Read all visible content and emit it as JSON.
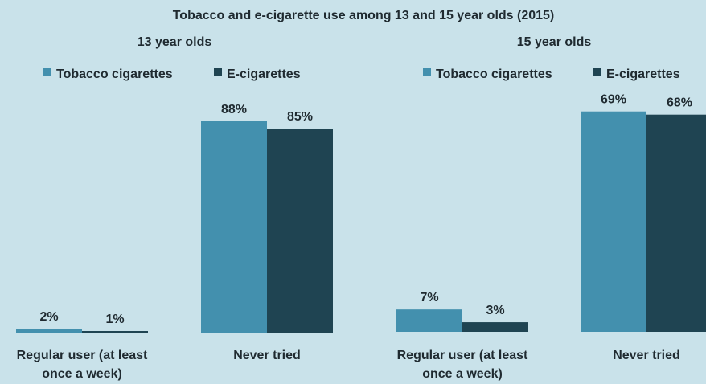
{
  "chart_data": [
    {
      "type": "bar",
      "title": "Tobacco and e-cigarette use among 13 and 15 year olds (2015)",
      "subtitle": "13 year olds",
      "categories": [
        "Regular user (at least once a week)",
        "Never tried"
      ],
      "category_lines": [
        [
          "Regular user (at least",
          "once a week)"
        ],
        [
          "Never tried"
        ]
      ],
      "series": [
        {
          "name": "Tobacco cigarettes",
          "values": [
            2,
            88
          ],
          "labels": [
            "2%",
            "88%"
          ],
          "color": "#4390ae"
        },
        {
          "name": "E-cigarettes",
          "values": [
            1,
            85
          ],
          "labels": [
            "1%",
            "85%"
          ],
          "color": "#1f4452"
        }
      ],
      "unit": "%",
      "ylim": [
        0,
        100
      ],
      "legend_position": "top",
      "grid": false
    },
    {
      "type": "bar",
      "title": "Tobacco and e-cigarette use among 13 and 15 year olds (2015)",
      "subtitle": "15 year olds",
      "categories": [
        "Regular user (at least once a week)",
        "Never tried"
      ],
      "category_lines": [
        [
          "Regular user (at least",
          "once a week)"
        ],
        [
          "Never tried"
        ]
      ],
      "series": [
        {
          "name": "Tobacco cigarettes",
          "values": [
            7,
            69
          ],
          "labels": [
            "7%",
            "69%"
          ],
          "color": "#4390ae"
        },
        {
          "name": "E-cigarettes",
          "values": [
            3,
            68
          ],
          "labels": [
            "3%",
            "68%"
          ],
          "color": "#1f4452"
        }
      ],
      "unit": "%",
      "ylim": [
        0,
        80
      ],
      "legend_position": "top",
      "grid": false
    }
  ]
}
